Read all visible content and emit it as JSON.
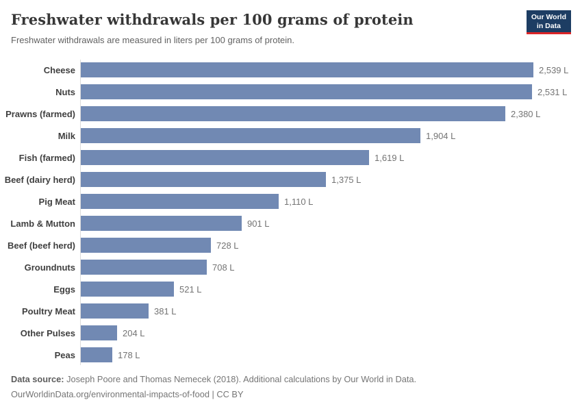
{
  "header": {
    "title": "Freshwater withdrawals per 100 grams of protein",
    "subtitle": "Freshwater withdrawals are measured in liters per 100 grams of protein.",
    "logo": {
      "line1": "Our World",
      "line2": "in Data"
    }
  },
  "chart_data": {
    "type": "bar",
    "orientation": "horizontal",
    "title": "Freshwater withdrawals per 100 grams of protein",
    "subtitle": "Freshwater withdrawals are measured in liters per 100 grams of protein.",
    "unit": "L",
    "grid": false,
    "xlim": [
      0,
      2539
    ],
    "categories": [
      "Cheese",
      "Nuts",
      "Prawns (farmed)",
      "Milk",
      "Fish (farmed)",
      "Beef (dairy herd)",
      "Pig Meat",
      "Lamb & Mutton",
      "Beef (beef herd)",
      "Groundnuts",
      "Eggs",
      "Poultry Meat",
      "Other Pulses",
      "Peas"
    ],
    "values": [
      2539,
      2531,
      2380,
      1904,
      1619,
      1375,
      1110,
      901,
      728,
      708,
      521,
      381,
      204,
      178
    ],
    "value_labels": [
      "2,539 L",
      "2,531 L",
      "2,380 L",
      "1,904 L",
      "1,619 L",
      "1,375 L",
      "1,110 L",
      "901 L",
      "728 L",
      "708 L",
      "521 L",
      "381 L",
      "204 L",
      "178 L"
    ],
    "bar_color": "#7189b3"
  },
  "footer": {
    "source_label": "Data source:",
    "source_text": " Joseph Poore and Thomas Nemecek (2018). Additional calculations by Our World in Data.",
    "url_line": "OurWorldinData.org/environmental-impacts-of-food | CC BY"
  },
  "colors": {
    "bar": "#7189b3",
    "axis_line": "#dcdcdc",
    "logo_navy": "#1d3d63",
    "logo_red": "#dc2527",
    "title_text": "#373737",
    "subtitle_text": "#616161",
    "category_text": "#3f3f3f",
    "value_text": "#737373",
    "footer_text": "#757575"
  }
}
